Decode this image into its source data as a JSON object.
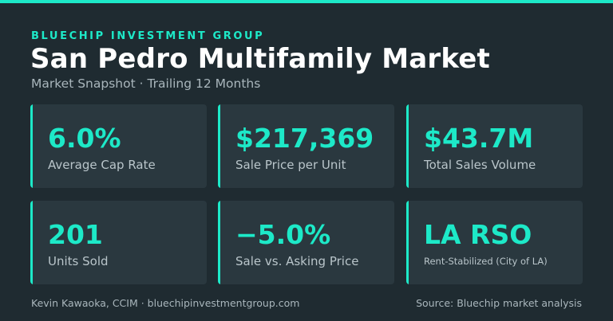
{
  "header": {
    "eyebrow": "BLUECHIP INVESTMENT GROUP",
    "title": "San Pedro Multifamily Market",
    "subtitle": "Market Snapshot · Trailing 12 Months"
  },
  "metrics": [
    {
      "value": "6.0%",
      "label": "Average Cap Rate"
    },
    {
      "value": "$217,369",
      "label": "Sale Price per Unit"
    },
    {
      "value": "$43.7M",
      "label": "Total Sales Volume"
    },
    {
      "value": "201",
      "label": "Units Sold"
    },
    {
      "value": "−5.0%",
      "label": "Sale vs. Asking Price"
    },
    {
      "value": "LA RSO",
      "label": "Rent-Stabilized (City of LA)"
    }
  ],
  "footer": {
    "credit": "Kevin Kawaoka, CCIM · bluechipinvestmentgroup.com",
    "source": "Source: Bluechip market analysis"
  },
  "colors": {
    "background": "#1f2b31",
    "card": "#2a383f",
    "accent": "#1de9c8"
  }
}
